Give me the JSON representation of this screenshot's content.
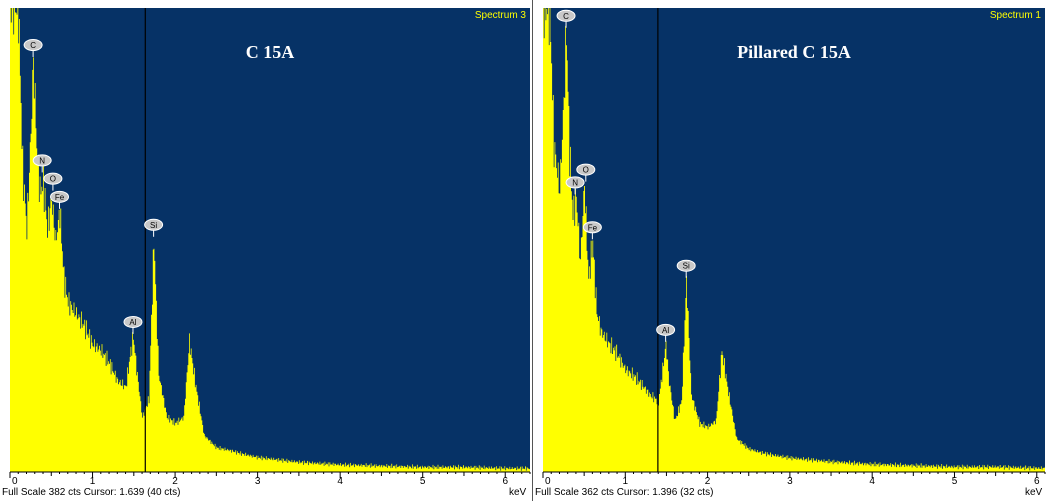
{
  "chart_data": [
    {
      "type": "area",
      "title": "C 15A",
      "spectrum_label": "Spectrum 3",
      "xlabel": "keV",
      "xlim": [
        0,
        6.3
      ],
      "ylim": [
        0,
        382
      ],
      "x_ticks": [
        "0",
        "1",
        "2",
        "3",
        "4",
        "5",
        "6"
      ],
      "colors": {
        "background": "#063266",
        "fill": "#ffff00",
        "cursor": "#000000"
      },
      "cursor_kev": 1.639,
      "footer": "Full Scale 382 cts Cursor: 1.639  (40 cts)",
      "peaks": [
        {
          "label": "C",
          "kev": 0.28,
          "counts": 340
        },
        {
          "label": "N",
          "kev": 0.39,
          "counts": 245
        },
        {
          "label": "O",
          "kev": 0.52,
          "counts": 230
        },
        {
          "label": "Fe",
          "kev": 0.6,
          "counts": 215
        },
        {
          "label": "Al",
          "kev": 1.49,
          "counts": 112
        },
        {
          "label": "Si",
          "kev": 1.74,
          "counts": 192
        }
      ],
      "x": [
        0,
        0.1,
        0.15,
        0.2,
        0.25,
        0.28,
        0.32,
        0.36,
        0.4,
        0.45,
        0.5,
        0.55,
        0.6,
        0.65,
        0.7,
        0.8,
        0.9,
        1.0,
        1.1,
        1.2,
        1.3,
        1.4,
        1.45,
        1.49,
        1.53,
        1.6,
        1.68,
        1.74,
        1.8,
        1.9,
        2.0,
        2.1,
        2.17,
        2.25,
        2.35,
        2.5,
        2.65,
        2.8,
        3.0,
        3.5,
        4.0,
        4.5,
        5.0,
        5.5,
        6.0,
        6.3
      ],
      "y": [
        382,
        382,
        250,
        200,
        280,
        340,
        270,
        230,
        240,
        200,
        225,
        190,
        215,
        160,
        140,
        130,
        120,
        105,
        100,
        90,
        75,
        70,
        95,
        112,
        85,
        45,
        60,
        192,
        80,
        45,
        40,
        45,
        108,
        70,
        30,
        20,
        18,
        15,
        12,
        8,
        6,
        5,
        4,
        4,
        3,
        3
      ]
    },
    {
      "type": "area",
      "title": "Pillared C 15A",
      "spectrum_label": "Spectrum 1",
      "xlabel": "keV",
      "xlim": [
        0,
        6.1
      ],
      "ylim": [
        0,
        362
      ],
      "x_ticks": [
        "0",
        "1",
        "2",
        "3",
        "4",
        "5",
        "6"
      ],
      "colors": {
        "background": "#063266",
        "fill": "#ffff00",
        "cursor": "#000000"
      },
      "cursor_kev": 1.396,
      "footer": "Full Scale 362 cts Cursor: 1.396  (32 cts)",
      "peaks": [
        {
          "label": "C",
          "kev": 0.28,
          "counts": 345
        },
        {
          "label": "N",
          "kev": 0.39,
          "counts": 215
        },
        {
          "label": "O",
          "kev": 0.52,
          "counts": 225
        },
        {
          "label": "Fe",
          "kev": 0.6,
          "counts": 180
        },
        {
          "label": "Al",
          "kev": 1.49,
          "counts": 100
        },
        {
          "label": "Si",
          "kev": 1.74,
          "counts": 150
        }
      ],
      "x": [
        0,
        0.08,
        0.13,
        0.2,
        0.25,
        0.28,
        0.32,
        0.36,
        0.4,
        0.45,
        0.5,
        0.55,
        0.6,
        0.65,
        0.7,
        0.8,
        0.9,
        1.0,
        1.1,
        1.2,
        1.3,
        1.4,
        1.45,
        1.49,
        1.53,
        1.6,
        1.68,
        1.74,
        1.8,
        1.9,
        2.0,
        2.1,
        2.17,
        2.25,
        2.35,
        2.5,
        2.65,
        2.8,
        3.0,
        3.5,
        4.0,
        4.5,
        5.0,
        5.5,
        6.0,
        6.1
      ],
      "y": [
        362,
        362,
        255,
        220,
        290,
        345,
        250,
        200,
        215,
        165,
        225,
        150,
        180,
        125,
        110,
        100,
        92,
        80,
        75,
        68,
        60,
        55,
        80,
        100,
        70,
        40,
        55,
        150,
        60,
        38,
        35,
        40,
        95,
        62,
        26,
        18,
        15,
        13,
        11,
        8,
        6,
        5,
        4,
        4,
        3,
        3
      ]
    }
  ]
}
